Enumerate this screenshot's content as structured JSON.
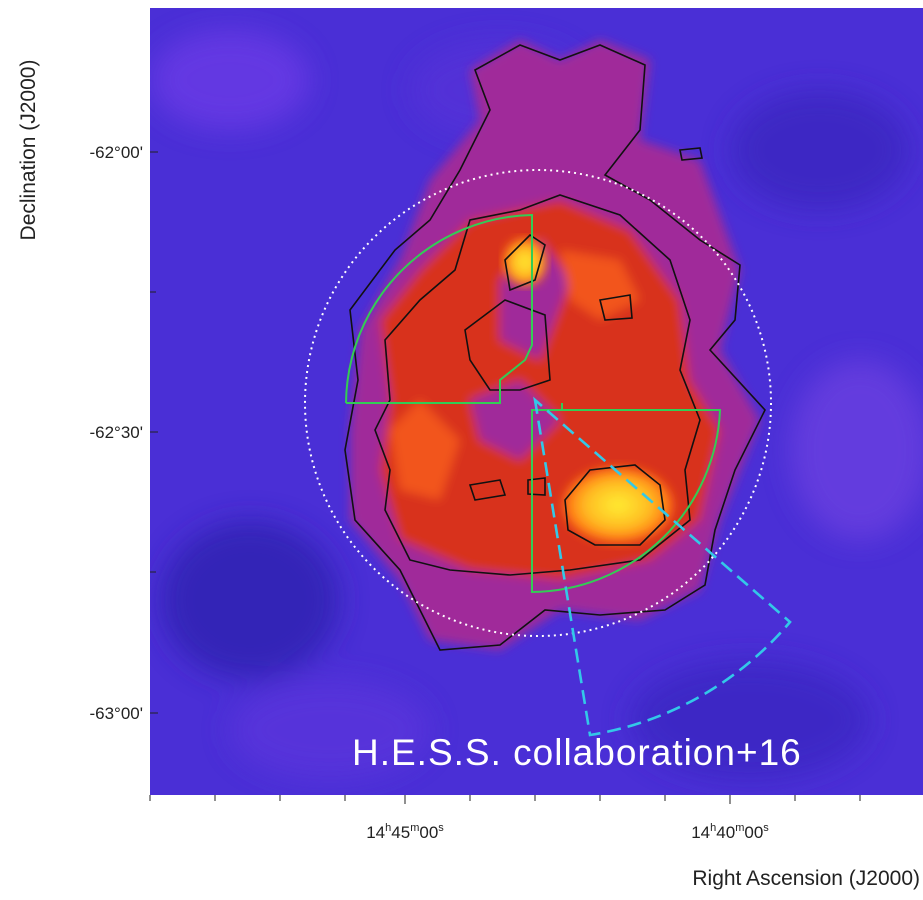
{
  "figure": {
    "y_axis_label": "Declination (J2000)",
    "x_axis_label": "Right Ascension (J2000)",
    "y_tick_labels": [
      "-62°00'",
      "-62°30'",
      "-63°00'"
    ],
    "x_tick_labels": [
      [
        "14",
        "h",
        "45",
        "m",
        "00",
        "s"
      ],
      [
        "14",
        "h",
        "40",
        "m",
        "00",
        "s"
      ]
    ],
    "credit": "H.E.S.S. collaboration+16"
  }
}
